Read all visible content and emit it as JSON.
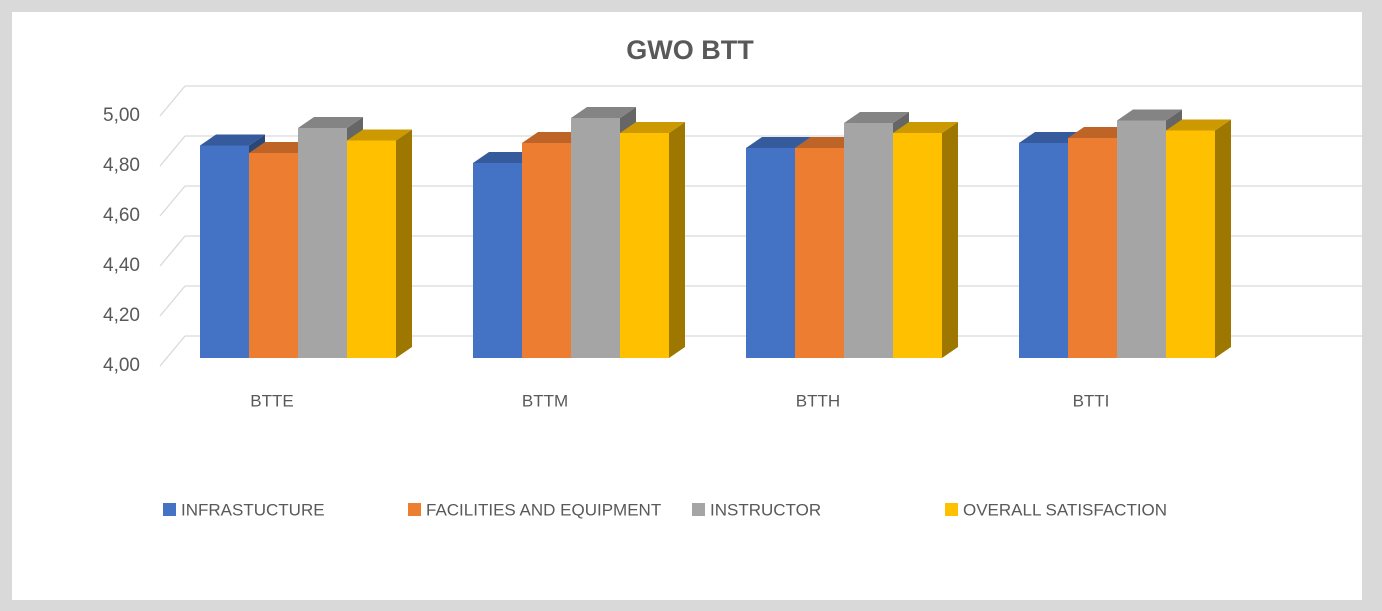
{
  "chart_data": {
    "type": "bar3d",
    "title": "GWO BTT",
    "categories": [
      "BTTE",
      "BTTM",
      "BTTH",
      "BTTI"
    ],
    "series": [
      {
        "name": "INFRASTUCTURE",
        "color": "#4472c4",
        "values": [
          4.85,
          4.78,
          4.84,
          4.86
        ]
      },
      {
        "name": "FACILITIES AND EQUIPMENT",
        "color": "#ed7d31",
        "values": [
          4.82,
          4.86,
          4.84,
          4.88
        ]
      },
      {
        "name": "INSTRUCTOR",
        "color": "#a5a5a5",
        "values": [
          4.92,
          4.96,
          4.94,
          4.95
        ]
      },
      {
        "name": "OVERALL SATISFACTION",
        "color": "#ffc000",
        "values": [
          4.87,
          4.9,
          4.9,
          4.91
        ]
      }
    ],
    "ylim": [
      4,
      5
    ],
    "yticks": [
      {
        "value": 4,
        "label": "4,00"
      },
      {
        "value": 4.2,
        "label": "4,20"
      },
      {
        "value": 4.4,
        "label": "4,40"
      },
      {
        "value": 4.6,
        "label": "4,60"
      },
      {
        "value": 4.8,
        "label": "4,80"
      },
      {
        "value": 5,
        "label": "5,00"
      }
    ],
    "grid": true,
    "legend": "bottom"
  }
}
